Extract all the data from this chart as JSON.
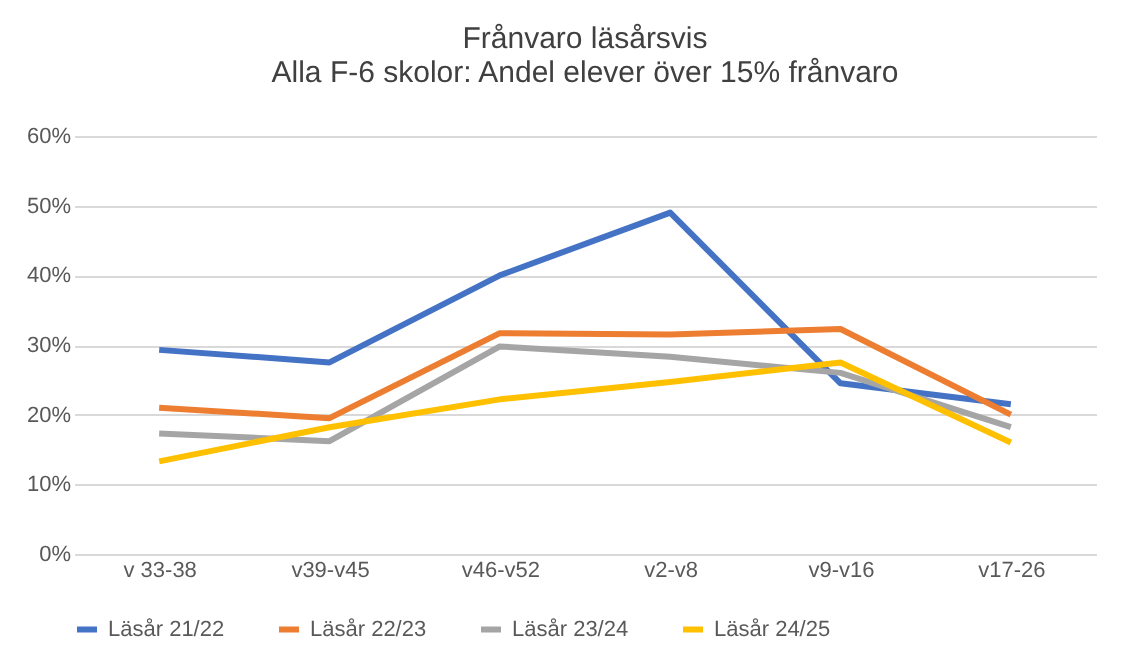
{
  "chart_data": {
    "type": "line",
    "title": [
      "Frånvaro läsårsvis",
      "Alla F-6 skolor: Andel elever över 15% frånvaro"
    ],
    "categories": [
      "v 33-38",
      "v39-v45",
      "v46-v52",
      "v2-v8",
      "v9-v16",
      "v17-26"
    ],
    "series": [
      {
        "name": "Läsår 21/22",
        "color": "#4472c4",
        "values": [
          29.3,
          27.5,
          40,
          49,
          24.5,
          21.5
        ]
      },
      {
        "name": "Läsår 22/23",
        "color": "#ed7d31",
        "values": [
          21,
          19.5,
          31.7,
          31.5,
          32.3,
          20
        ]
      },
      {
        "name": "Läsår 23/24",
        "color": "#a5a5a5",
        "values": [
          17.3,
          16.2,
          29.8,
          28.3,
          26,
          18.2
        ]
      },
      {
        "name": "Läsår 24/25",
        "color": "#ffc000",
        "values": [
          13.3,
          18.2,
          22.2,
          24.7,
          27.5,
          16
        ]
      }
    ],
    "ylim": [
      0,
      60
    ],
    "yticks": [
      {
        "value": 0,
        "label": "0%"
      },
      {
        "value": 10,
        "label": "10%"
      },
      {
        "value": 20,
        "label": "20%"
      },
      {
        "value": 30,
        "label": "30%"
      },
      {
        "value": 40,
        "label": "40%"
      },
      {
        "value": 50,
        "label": "50%"
      },
      {
        "value": 60,
        "label": "60%"
      }
    ],
    "grid": "y",
    "legend": "bottom",
    "marker": "none",
    "line_style": "solid"
  }
}
